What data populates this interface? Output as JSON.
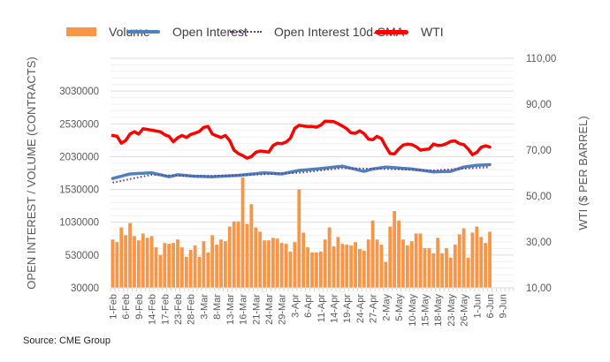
{
  "source": "Source: CME Group",
  "legend": [
    {
      "label": "Volume",
      "type": "bar",
      "color": "#f79646"
    },
    {
      "label": "Open Interest",
      "type": "line",
      "color": "#4f81bd"
    },
    {
      "label": "Open Interest 10d-SMA",
      "type": "dotted-line",
      "color": "#7030a0"
    },
    {
      "label": "WTI",
      "type": "line",
      "color": "#ff0000"
    }
  ],
  "chart_data": {
    "type": "bar+line (dual axis)",
    "title": "",
    "xlabel": "",
    "ylabel_left": "OPEN INTEREST / VOLUME (CONTRACTS)",
    "ylabel_right": "WTI ($ PER BARREL)",
    "ylim_left": [
      30000,
      3530000
    ],
    "ylim_right": [
      10,
      110
    ],
    "yticks_left": [
      "30000",
      "530000",
      "1030000",
      "1530000",
      "2030000",
      "2530000",
      "3030000"
    ],
    "yticks_left_values": [
      30000,
      530000,
      1030000,
      1530000,
      2030000,
      2530000,
      3030000
    ],
    "yticks_right": [
      "10,00",
      "30,00",
      "50,00",
      "70,00",
      "90,00",
      "110,00"
    ],
    "yticks_right_values": [
      10,
      30,
      50,
      70,
      90,
      110
    ],
    "x_tick_labels": [
      "1-Feb",
      "6-Feb",
      "9-Feb",
      "14-Feb",
      "17-Feb",
      "23-Feb",
      "28-Feb",
      "3-Mar",
      "8-Mar",
      "13-Mar",
      "16-Mar",
      "21-Mar",
      "24-Mar",
      "29-Mar",
      "3-Apr",
      "6-Apr",
      "11-Apr",
      "14-Apr",
      "19-Apr",
      "24-Apr",
      "27-Apr",
      "2-May",
      "5-May",
      "10-May",
      "15-May",
      "18-May",
      "23-May",
      "26-May",
      "1-Jun",
      "6-Jun",
      "9-Jun"
    ],
    "x_slots": 93,
    "grid": true,
    "legend_position": "top",
    "series": [
      {
        "name": "Volume",
        "type": "bar",
        "axis": "left",
        "color": "#f79646",
        "values": [
          767000,
          727000,
          951000,
          833000,
          1017000,
          819000,
          754000,
          859000,
          793000,
          819000,
          648000,
          530000,
          714000,
          701000,
          714000,
          767000,
          648000,
          504000,
          609000,
          675000,
          504000,
          741000,
          569000,
          833000,
          688000,
          767000,
          741000,
          964000,
          1043000,
          1043000,
          1714000,
          1004000,
          1306000,
          951000,
          885000,
          754000,
          754000,
          793000,
          780000,
          714000,
          701000,
          583000,
          727000,
          1530000,
          872000,
          648000,
          569000,
          569000,
          583000,
          767000,
          951000,
          662000,
          806000,
          701000,
          688000,
          675000,
          727000,
          622000,
          596000,
          767000,
          1056000,
          767000,
          688000,
          425000,
          964000,
          1201000,
          1056000,
          767000,
          675000,
          741000,
          859000,
          859000,
          635000,
          635000,
          556000,
          793000,
          556000,
          635000,
          490000,
          688000,
          846000,
          938000,
          490000,
          872000,
          964000,
          806000,
          714000,
          885000
        ]
      },
      {
        "name": "Open Interest",
        "type": "line",
        "axis": "left",
        "color": "#4f81bd",
        "values": [
          1697000,
          1715000,
          1732000,
          1750000,
          1767000,
          1770000,
          1774000,
          1777000,
          1781000,
          1784000,
          1769000,
          1754000,
          1738000,
          1723000,
          1738000,
          1754000,
          1748000,
          1742000,
          1737000,
          1731000,
          1729000,
          1727000,
          1725000,
          1723000,
          1727000,
          1731000,
          1734000,
          1738000,
          1741000,
          1745000,
          1752000,
          1758000,
          1765000,
          1771000,
          1778000,
          1784000,
          1780000,
          1776000,
          1771000,
          1767000,
          1780000,
          1794000,
          1807000,
          1820000,
          1826000,
          1831000,
          1837000,
          1842000,
          1849000,
          1856000,
          1864000,
          1871000,
          1878000,
          1885000,
          1869000,
          1853000,
          1838000,
          1822000,
          1806000,
          1824000,
          1842000,
          1852000,
          1862000,
          1872000,
          1867000,
          1862000,
          1857000,
          1852000,
          1847000,
          1842000,
          1833000,
          1824000,
          1816000,
          1807000,
          1798000,
          1800000,
          1802000,
          1804000,
          1806000,
          1828000,
          1850000,
          1872000,
          1881000,
          1889000,
          1898000,
          1901000,
          1905000,
          1908000
        ]
      },
      {
        "name": "Open Interest 10d-SMA",
        "type": "dotted-line",
        "axis": "left",
        "color": "#7030a0",
        "values": [
          1635000,
          1648000,
          1661000,
          1675000,
          1688000,
          1701000,
          1714000,
          1728000,
          1741000,
          1754000,
          1752000,
          1749000,
          1747000,
          1745000,
          1742000,
          1740000,
          1738000,
          1736000,
          1733000,
          1731000,
          1732000,
          1734000,
          1735000,
          1737000,
          1738000,
          1740000,
          1741000,
          1742000,
          1744000,
          1745000,
          1748000,
          1751000,
          1754000,
          1757000,
          1759000,
          1762000,
          1765000,
          1768000,
          1771000,
          1773000,
          1776000,
          1779000,
          1781000,
          1784000,
          1791000,
          1798000,
          1805000,
          1812000,
          1820000,
          1827000,
          1834000,
          1841000,
          1848000,
          1855000,
          1854000,
          1852000,
          1851000,
          1850000,
          1848000,
          1847000,
          1846000,
          1845000,
          1843000,
          1842000,
          1840000,
          1838000,
          1836000,
          1834000,
          1832000,
          1830000,
          1828000,
          1826000,
          1824000,
          1822000,
          1820000,
          1824000,
          1828000,
          1832000,
          1836000,
          1840000,
          1843000,
          1847000,
          1851000,
          1855000,
          1859000,
          1863000,
          1866000,
          1870000
        ]
      },
      {
        "name": "WTI",
        "type": "line",
        "axis": "right",
        "color": "#ff0000",
        "values": [
          76.4,
          76.0,
          73.0,
          74.2,
          77.0,
          78.0,
          77.0,
          79.3,
          79.0,
          78.7,
          78.3,
          78.0,
          76.7,
          76.0,
          73.6,
          75.4,
          76.4,
          75.5,
          76.8,
          77.4,
          78.1,
          79.9,
          80.3,
          77.0,
          76.2,
          75.5,
          76.4,
          74.1,
          70.0,
          68.5,
          67.6,
          66.5,
          67.2,
          69.0,
          69.6,
          69.4,
          69.1,
          72.0,
          73.0,
          72.8,
          73.5,
          75.2,
          79.5,
          80.8,
          80.5,
          80.3,
          80.3,
          80.0,
          80.8,
          82.6,
          82.5,
          82.4,
          81.5,
          80.5,
          79.3,
          77.5,
          77.3,
          78.4,
          77.2,
          74.8,
          74.5,
          76.0,
          75.0,
          71.5,
          68.5,
          68.3,
          70.5,
          72.2,
          72.6,
          72.4,
          71.5,
          70.0,
          70.3,
          70.5,
          72.6,
          72.0,
          72.1,
          72.8,
          73.8,
          74.0,
          72.8,
          72.4,
          70.5,
          68.0,
          69.0,
          71.2,
          71.9,
          71.3
        ]
      }
    ]
  }
}
